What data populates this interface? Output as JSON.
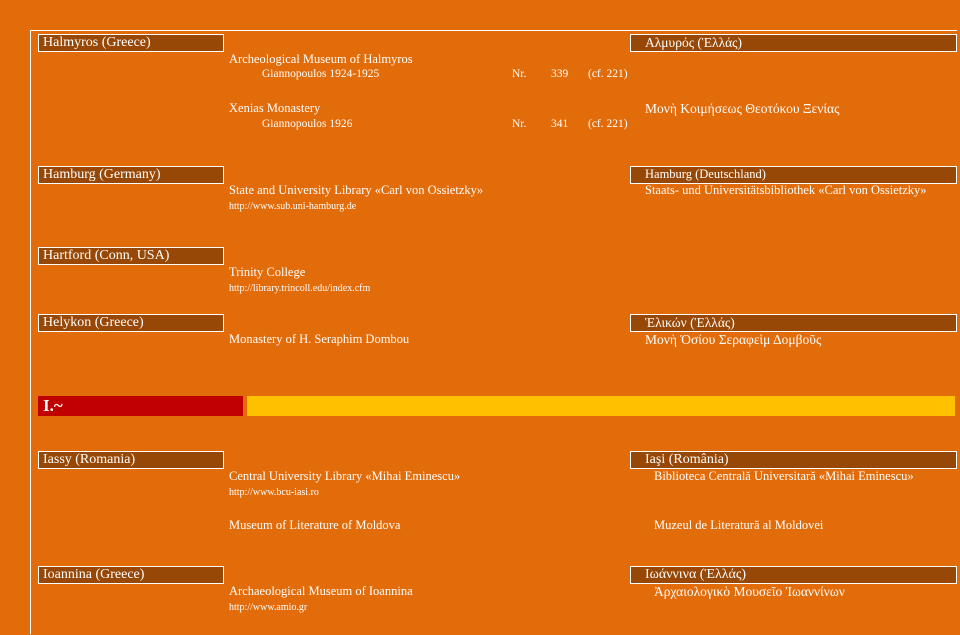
{
  "halmyros": {
    "place": "Halmyros (Greece)",
    "place_local": "Αλμυρός (Ἑλλάς)",
    "entries": [
      {
        "name": "Archeological Museum of Halmyros",
        "ref": "Giannopoulos 1924-1925",
        "nr_label": "Nr.",
        "nr": "339",
        "cf": "(cf. 221)"
      },
      {
        "name": "Xenias Monastery",
        "name_local": "Μονὴ Κοιμήσεως Θεοτόκου Ξενίας",
        "ref": "Giannopoulos 1926",
        "nr_label": "Nr.",
        "nr": "341",
        "cf": "(cf. 221)"
      }
    ]
  },
  "hamburg": {
    "place": "Hamburg (Germany)",
    "place_local": "Hamburg (Deutschland)",
    "institution": "State and University Library «Carl von Ossietzky»",
    "institution_local": "Staats- und Universitätsbibliothek «Carl von Ossietzky»",
    "url": "http://www.sub.uni-hamburg.de"
  },
  "hartford": {
    "place": "Hartford  (Conn, USA)",
    "institution": "Trinity College",
    "url": "http://library.trincoll.edu/index.cfm"
  },
  "helykon": {
    "place": "Helykon (Greece)",
    "place_local": "Ἑλικών (Ἑλλάς)",
    "institution": "Monastery of H. Seraphim Dombou",
    "institution_local": "Μονὴ Ὁσίου Σεραφεὶμ Δομβοῦς"
  },
  "section_letter": "I.~",
  "iassy": {
    "place": "Iassy (Romania)",
    "place_local": "Iaşi (România)",
    "entries": [
      {
        "name": "Central University Library «Mihai Eminescu»",
        "name_local": "Biblioteca Centrală Universitară «Mihai Eminescu»",
        "url": "http://www.bcu-iasi.ro"
      },
      {
        "name": "Museum of Literature of Moldova",
        "name_local": "Muzeul de Literatură al Moldovei"
      }
    ]
  },
  "ioannina": {
    "place": "Ioannina (Greece)",
    "place_local": "Ιωάννινα (Ἑλλάς)",
    "institution": "Archaeological Museum of Ioannina",
    "institution_local": "Ἀρχαιολογικὸ Μουσεῖο Ἰωαννίνων",
    "url": "http://www.amio.gr"
  },
  "colors": {
    "background": "#e36c0a",
    "header_bar": "#984806",
    "letter_bar": "#c00000",
    "letter_fill": "#ffc000"
  }
}
